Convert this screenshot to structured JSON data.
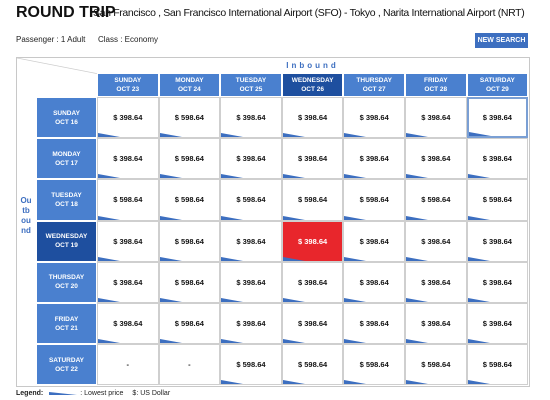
{
  "header": {
    "title": "ROUND TRIP",
    "route": "San Francisco , San Francisco International Airport (SFO) - Tokyo , Narita International Airport (NRT)",
    "passenger": "Passenger : 1 Adult",
    "class": "Class : Economy",
    "button": "NEW SEARCH"
  },
  "matrix": {
    "inbound_label": "Inbound",
    "outbound_label": "Outbound",
    "columns": [
      {
        "day": "SUNDAY",
        "date": "OCT 23"
      },
      {
        "day": "MONDAY",
        "date": "OCT 24"
      },
      {
        "day": "TUESDAY",
        "date": "OCT 25"
      },
      {
        "day": "WEDNESDAY",
        "date": "OCT 26"
      },
      {
        "day": "THURSDAY",
        "date": "OCT 27"
      },
      {
        "day": "FRIDAY",
        "date": "OCT 28"
      },
      {
        "day": "SATURDAY",
        "date": "OCT 29"
      }
    ],
    "rows": [
      {
        "day": "SUNDAY",
        "date": "OCT 16",
        "cells": [
          {
            "price": "$ 398.64",
            "lowest": true
          },
          {
            "price": "$ 598.64",
            "lowest": true
          },
          {
            "price": "$ 398.64",
            "lowest": true
          },
          {
            "price": "$ 398.64",
            "lowest": true
          },
          {
            "price": "$ 398.64",
            "lowest": true
          },
          {
            "price": "$ 398.64",
            "lowest": true
          },
          {
            "price": "$ 398.64",
            "lowest": true
          }
        ]
      },
      {
        "day": "MONDAY",
        "date": "OCT 17",
        "cells": [
          {
            "price": "$ 398.64",
            "lowest": true
          },
          {
            "price": "$ 598.64",
            "lowest": true
          },
          {
            "price": "$ 398.64",
            "lowest": true
          },
          {
            "price": "$ 398.64",
            "lowest": true
          },
          {
            "price": "$ 398.64",
            "lowest": true
          },
          {
            "price": "$ 398.64",
            "lowest": true
          },
          {
            "price": "$ 398.64",
            "lowest": true
          }
        ]
      },
      {
        "day": "TUESDAY",
        "date": "OCT 18",
        "cells": [
          {
            "price": "$ 598.64",
            "lowest": true
          },
          {
            "price": "$ 598.64",
            "lowest": true
          },
          {
            "price": "$ 598.64",
            "lowest": true
          },
          {
            "price": "$ 598.64",
            "lowest": true
          },
          {
            "price": "$ 598.64",
            "lowest": true
          },
          {
            "price": "$ 598.64",
            "lowest": true
          },
          {
            "price": "$ 598.64",
            "lowest": true
          }
        ]
      },
      {
        "day": "WEDNESDAY",
        "date": "OCT 19",
        "cells": [
          {
            "price": "$ 398.64",
            "lowest": true
          },
          {
            "price": "$ 598.64",
            "lowest": true
          },
          {
            "price": "$ 398.64",
            "lowest": true
          },
          {
            "price": "$ 398.64",
            "lowest": true
          },
          {
            "price": "$ 398.64",
            "lowest": true
          },
          {
            "price": "$ 398.64",
            "lowest": true
          },
          {
            "price": "$ 398.64",
            "lowest": true
          }
        ]
      },
      {
        "day": "THURSDAY",
        "date": "OCT 20",
        "cells": [
          {
            "price": "$ 398.64",
            "lowest": true
          },
          {
            "price": "$ 598.64",
            "lowest": true
          },
          {
            "price": "$ 398.64",
            "lowest": true
          },
          {
            "price": "$ 398.64",
            "lowest": true
          },
          {
            "price": "$ 398.64",
            "lowest": true
          },
          {
            "price": "$ 398.64",
            "lowest": true
          },
          {
            "price": "$ 398.64",
            "lowest": true
          }
        ]
      },
      {
        "day": "FRIDAY",
        "date": "OCT 21",
        "cells": [
          {
            "price": "$ 398.64",
            "lowest": true
          },
          {
            "price": "$ 598.64",
            "lowest": true
          },
          {
            "price": "$ 398.64",
            "lowest": true
          },
          {
            "price": "$ 398.64",
            "lowest": true
          },
          {
            "price": "$ 398.64",
            "lowest": true
          },
          {
            "price": "$ 398.64",
            "lowest": true
          },
          {
            "price": "$ 398.64",
            "lowest": true
          }
        ]
      },
      {
        "day": "SATURDAY",
        "date": "OCT 22",
        "cells": [
          {
            "price": "-",
            "lowest": false
          },
          {
            "price": "-",
            "lowest": false
          },
          {
            "price": "$ 598.64",
            "lowest": true
          },
          {
            "price": "$ 598.64",
            "lowest": true
          },
          {
            "price": "$ 598.64",
            "lowest": true
          },
          {
            "price": "$ 598.64",
            "lowest": true
          },
          {
            "price": "$ 598.64",
            "lowest": true
          }
        ]
      }
    ]
  },
  "legend": {
    "label": "Legend:",
    "lowest": ": Lowest price",
    "currency": "$: US Dollar"
  }
}
